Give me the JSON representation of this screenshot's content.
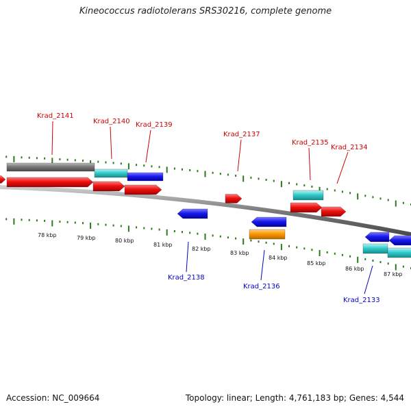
{
  "title": "Kineococcus radiotolerans SRS30216, complete genome",
  "footer": {
    "accession": "Accession: NC_009664",
    "topology": "Topology: linear; Length: 4,761,183 bp; Genes: 4,544"
  },
  "colors": {
    "backbone": "#808080",
    "tick": "#2a7a1a",
    "label_upper": "#cc0000",
    "label_lower": "#0000cc",
    "red": "#ee1111",
    "blue": "#1a1aee",
    "cyan": "#33cccc",
    "orange": "#ff9900",
    "gray": "#777777"
  },
  "axis": {
    "tick_labels": [
      "78 kbp",
      "79 kbp",
      "80 kbp",
      "81 kbp",
      "82 kbp",
      "83 kbp",
      "84 kbp",
      "85 kbp",
      "86 kbp",
      "87 kbp"
    ]
  },
  "gene_labels_upper": [
    "Krad_2141",
    "Krad_2140",
    "Krad_2139",
    "Krad_2137",
    "Krad_2135",
    "Krad_2134"
  ],
  "gene_labels_lower": [
    "Krad_2138",
    "Krad_2136",
    "Krad_2133"
  ]
}
